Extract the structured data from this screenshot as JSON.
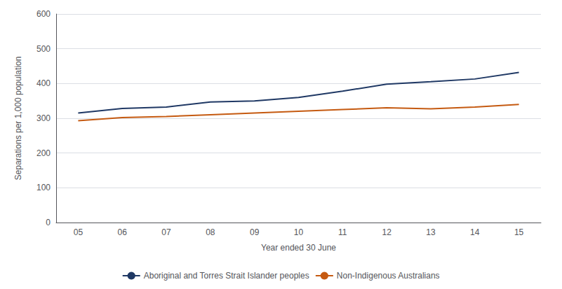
{
  "chart_data": {
    "type": "line",
    "xlabel": "Year ended 30 June",
    "ylabel": "Separations per 1,000 population",
    "categories": [
      "05",
      "06",
      "07",
      "08",
      "09",
      "10",
      "11",
      "12",
      "13",
      "14",
      "15"
    ],
    "series": [
      {
        "name": "Aboriginal and Torres Strait Islander peoples",
        "color": "#1F3864",
        "values": [
          315,
          328,
          332,
          347,
          350,
          360,
          378,
          398,
          405,
          413,
          432
        ]
      },
      {
        "name": "Non-Indigenous Australians",
        "color": "#C55A11",
        "values": [
          293,
          302,
          305,
          310,
          315,
          320,
          325,
          330,
          327,
          332,
          340
        ]
      }
    ],
    "ylim": [
      0,
      600
    ],
    "yticks": [
      0,
      100,
      200,
      300,
      400,
      500,
      600
    ],
    "grid": true,
    "legend": "bottom"
  }
}
